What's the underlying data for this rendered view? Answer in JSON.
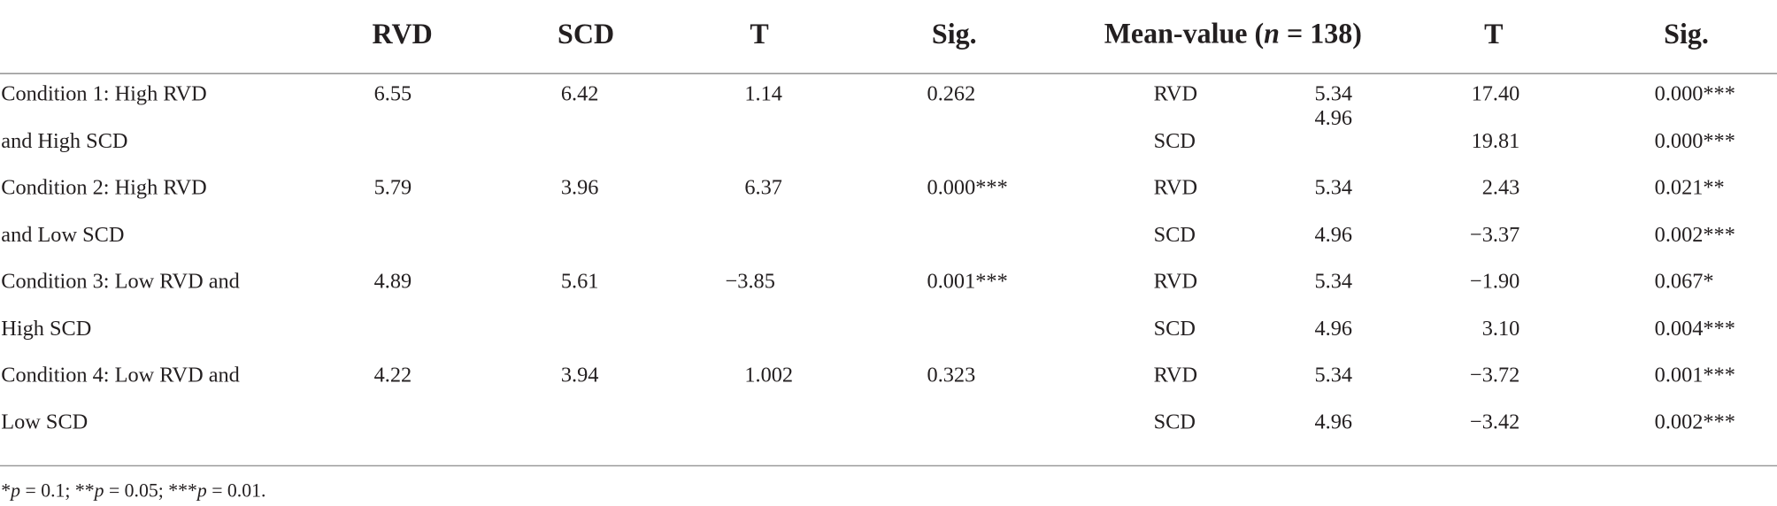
{
  "header": {
    "columns": [
      "RVD",
      "SCD",
      "T",
      "Sig."
    ],
    "mean_value": [
      "Mean-value (",
      "n",
      " = 138)"
    ],
    "right_columns": [
      "T",
      "Sig."
    ]
  },
  "rows": [
    {
      "label": [
        "Condition 1: High RVD",
        "and High SCD"
      ],
      "rvd": "6.55",
      "scd": "6.42",
      "t": "1.14",
      "sig": "0.262",
      "tests": [
        [
          "RVD",
          "5.34",
          "17.40",
          "0.000***"
        ],
        [
          "SCD",
          "4.96",
          "19.81",
          "0.000***"
        ]
      ]
    },
    {
      "label": [
        "Condition 2: High RVD",
        "and Low SCD"
      ],
      "rvd": "5.79",
      "scd": "3.96",
      "t": "6.37",
      "sig": "0.000***",
      "tests": [
        [
          "RVD",
          "5.34",
          "2.43",
          "0.021**"
        ],
        [
          "SCD",
          "4.96",
          "−3.37",
          "0.002***"
        ]
      ]
    },
    {
      "label": [
        "Condition 3: Low RVD and",
        "High SCD"
      ],
      "rvd": "4.89",
      "scd": "5.61",
      "t": "−3.85",
      "sig": "0.001***",
      "tests": [
        [
          "RVD",
          "5.34",
          "−1.90",
          "0.067*"
        ],
        [
          "SCD",
          "4.96",
          "3.10",
          "0.004***"
        ]
      ]
    },
    {
      "label": [
        "Condition 4: Low RVD and",
        "Low SCD"
      ],
      "rvd": "4.22",
      "scd": "3.94",
      "t": "1.002",
      "sig": "0.323",
      "tests": [
        [
          "RVD",
          "5.34",
          "−3.72",
          "0.001***"
        ],
        [
          "SCD",
          "4.96",
          "−3.42",
          "0.002***"
        ]
      ]
    }
  ],
  "footnote": [
    "*",
    "p",
    " = 0.1; **",
    "p",
    " = 0.05; ***",
    "p",
    " = 0.01."
  ]
}
